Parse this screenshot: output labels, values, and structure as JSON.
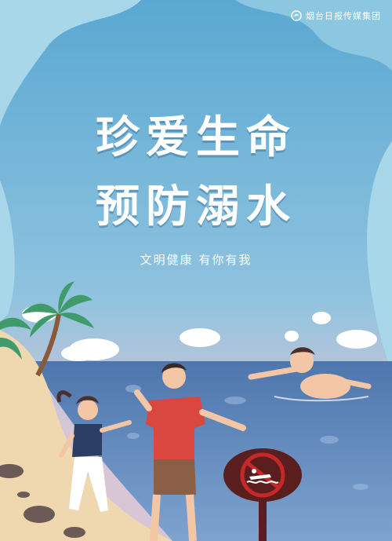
{
  "brand": {
    "name": "烟台日报传媒集团",
    "logo_icon": "swirl-logo-icon"
  },
  "headline": {
    "line1": "珍爱生命",
    "line2": "预防溺水"
  },
  "slogan": "文明健康 有你有我",
  "sign": {
    "icon": "no-swimming-icon"
  },
  "colors": {
    "sky": "#6fb3d6",
    "frame_light": "#a9d7ea",
    "sea": "#5c7fb6",
    "sand": "#efd7b0",
    "sign_red": "#c62828",
    "sign_dark": "#5a1e1e"
  }
}
